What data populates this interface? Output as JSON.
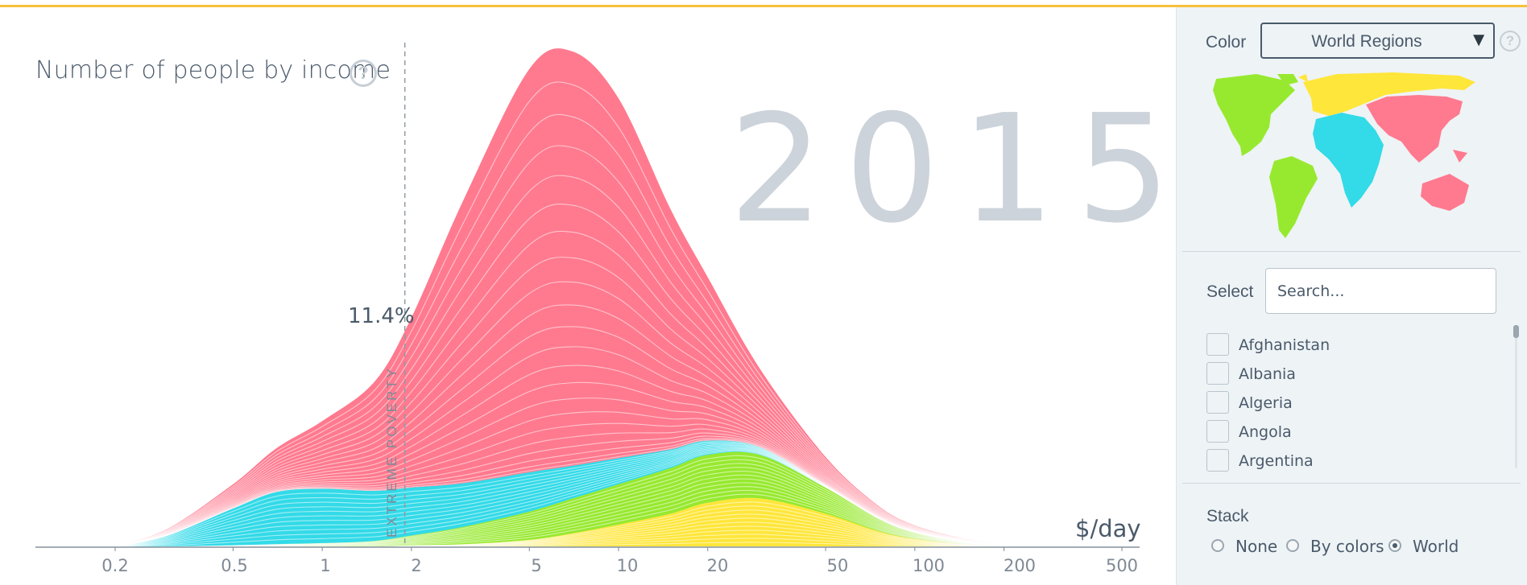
{
  "chart": {
    "title": "Number of people by income",
    "year": "2015",
    "poverty_value": "11.4%",
    "poverty_label": "EXTREME POVERTY",
    "unit": "$/day"
  },
  "chart_data": {
    "type": "area",
    "title": "Number of people by income",
    "xlabel": "$/day",
    "x_scale": "log",
    "xlim": [
      0.2,
      500
    ],
    "x_ticks": [
      "0.2",
      "0.5",
      "1",
      "2",
      "5",
      "10",
      "20",
      "50",
      "100",
      "200",
      "500"
    ],
    "poverty_line": 1.9,
    "poverty_share": "11.4%",
    "stack": "World",
    "x": [
      0.2,
      0.3,
      0.5,
      0.7,
      1,
      1.5,
      2,
      3,
      5,
      7,
      10,
      15,
      20,
      30,
      50,
      75,
      100,
      150,
      200,
      300,
      500
    ],
    "series": [
      {
        "color": "#ffe63b",
        "values": [
          0,
          0,
          0,
          0,
          0,
          0,
          0.05,
          0.1,
          0.3,
          0.6,
          1.0,
          1.5,
          2.0,
          2.2,
          1.5,
          0.7,
          0.35,
          0.1,
          0.04,
          0.01,
          0
        ]
      },
      {
        "color": "#97e92f",
        "values": [
          0,
          0,
          0.05,
          0.1,
          0.15,
          0.25,
          0.45,
          0.8,
          1.3,
          1.6,
          1.85,
          2.1,
          2.2,
          2.0,
          1.2,
          0.6,
          0.3,
          0.1,
          0.04,
          0.01,
          0
        ]
      },
      {
        "color": "#33dae8",
        "values": [
          0,
          0.5,
          1.7,
          2.4,
          2.5,
          2.3,
          2.2,
          2.0,
          1.8,
          1.5,
          1.2,
          0.85,
          0.65,
          0.35,
          0.1,
          0.03,
          0.01,
          0,
          0,
          0,
          0
        ]
      },
      {
        "color": "#ff7a8f",
        "values": [
          0,
          0.3,
          1.1,
          2.0,
          3.1,
          5.0,
          7.8,
          13.0,
          18.5,
          19.0,
          16.5,
          11.0,
          7.5,
          3.6,
          1.3,
          0.55,
          0.3,
          0.12,
          0.05,
          0.01,
          0
        ]
      }
    ]
  },
  "panel": {
    "color_label": "Color",
    "color_value": "World Regions",
    "color_arrow": "▼",
    "help_glyph": "?",
    "select_label": "Select",
    "search_placeholder": "Search...",
    "countries": [
      "Afghanistan",
      "Albania",
      "Algeria",
      "Angola",
      "Argentina"
    ],
    "stack_label": "Stack",
    "stack_options": [
      "None",
      "By colors",
      "World"
    ],
    "stack_selected": "World"
  },
  "icons": {
    "help": "question-circle-icon",
    "dropdown": "triangle-down-icon"
  },
  "colors": {
    "accent": "#f8c13a",
    "red": "#ff7a8f",
    "cyan": "#33dae8",
    "green": "#97e92f",
    "yellow": "#ffe63b"
  }
}
